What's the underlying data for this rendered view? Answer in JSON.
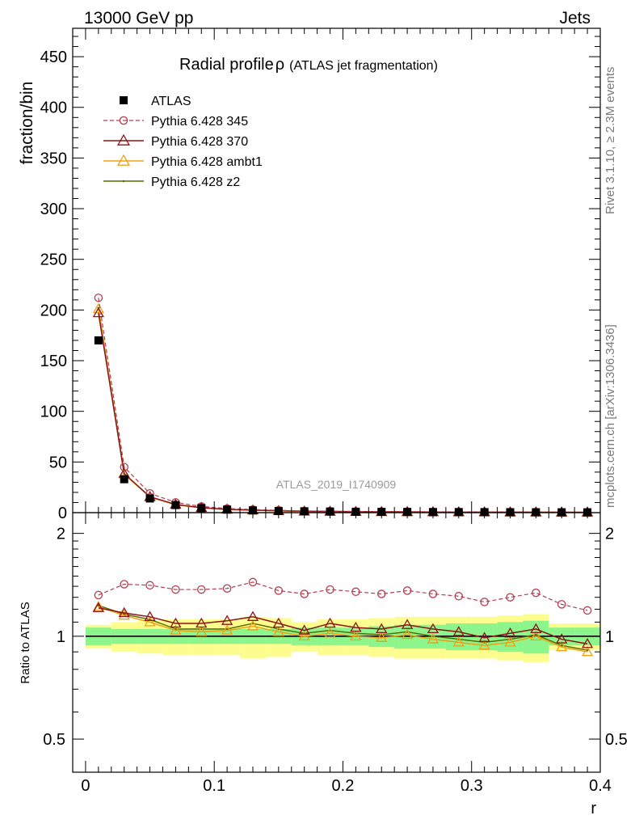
{
  "header": {
    "left_label": "13000 GeV pp",
    "right_label": "Jets"
  },
  "side_labels": {
    "rivet": "Rivet 3.1.10, ≥ 2.3M events",
    "mcplots": "mcplots.cern.ch [arXiv:1306.3436]"
  },
  "watermark": "ATLAS_2019_I1740909",
  "chart_data": {
    "type": "line",
    "title": "Radial profile",
    "title_symbol": "ρ",
    "subtitle": "(ATLAS jet fragmentation)",
    "xlabel": "r",
    "ylabel": "fraction/bin",
    "ratio_ylabel": "Ratio to ATLAS",
    "xlim": [
      -0.01,
      0.4
    ],
    "ylim": [
      0,
      478
    ],
    "ratio_ylim": [
      0.4,
      2.3
    ],
    "ratio_log": true,
    "x_ticks": [
      0,
      0.1,
      0.2,
      0.3,
      0.4
    ],
    "x_tick_labels": [
      "0",
      "0.1",
      "0.2",
      "0.3",
      "0.4"
    ],
    "y_ticks": [
      0,
      50,
      100,
      150,
      200,
      250,
      300,
      350,
      400,
      450
    ],
    "y_tick_labels": [
      "0",
      "50",
      "100",
      "150",
      "200",
      "250",
      "300",
      "350",
      "400",
      "450"
    ],
    "ratio_ticks": [
      0.5,
      1,
      2
    ],
    "ratio_tick_labels": [
      "0.5",
      "1",
      "2"
    ],
    "legend_position": "top-left",
    "x": [
      0.01,
      0.03,
      0.05,
      0.07,
      0.09,
      0.11,
      0.13,
      0.15,
      0.17,
      0.19,
      0.21,
      0.23,
      0.25,
      0.27,
      0.29,
      0.31,
      0.33,
      0.35,
      0.37,
      0.39
    ],
    "data": {
      "name": "ATLAS",
      "values": [
        170,
        33,
        14,
        7.5,
        4.5,
        3.0,
        2.2,
        1.7,
        1.3,
        1.1,
        0.9,
        0.8,
        0.7,
        0.6,
        0.55,
        0.5,
        0.45,
        0.4,
        0.37,
        0.34
      ],
      "band_stat": [
        0.06,
        0.05,
        0.05,
        0.05,
        0.05,
        0.05,
        0.05,
        0.05,
        0.06,
        0.06,
        0.06,
        0.07,
        0.08,
        0.08,
        0.09,
        0.09,
        0.1,
        0.11,
        0.06,
        0.06
      ],
      "band_total": [
        0.08,
        0.1,
        0.11,
        0.12,
        0.12,
        0.12,
        0.14,
        0.13,
        0.1,
        0.12,
        0.12,
        0.13,
        0.14,
        0.14,
        0.14,
        0.14,
        0.15,
        0.16,
        0.09,
        0.09
      ]
    },
    "series": [
      {
        "name": "Pythia 6.428 345",
        "color": "#b43c50",
        "marker": "circle",
        "dashed": true,
        "values": [
          212,
          45,
          19,
          10.1,
          6.1,
          4.1,
          3.1,
          2.3,
          1.7,
          1.5,
          1.2,
          1.05,
          0.95,
          0.78,
          0.72,
          0.63,
          0.6,
          0.55,
          0.46,
          0.4
        ],
        "ratio": [
          1.32,
          1.42,
          1.41,
          1.37,
          1.37,
          1.38,
          1.44,
          1.36,
          1.33,
          1.37,
          1.35,
          1.33,
          1.36,
          1.33,
          1.31,
          1.26,
          1.3,
          1.34,
          1.24,
          1.19
        ]
      },
      {
        "name": "Pythia 6.428 370",
        "color": "#8c1414",
        "marker": "triangle",
        "dashed": false,
        "values": [
          197,
          38.6,
          15.7,
          8.1,
          4.9,
          3.3,
          2.5,
          1.85,
          1.35,
          1.2,
          0.95,
          0.84,
          0.76,
          0.63,
          0.57,
          0.5,
          0.46,
          0.43,
          0.36,
          0.32
        ],
        "ratio": [
          1.21,
          1.17,
          1.14,
          1.09,
          1.09,
          1.11,
          1.14,
          1.09,
          1.04,
          1.09,
          1.06,
          1.05,
          1.08,
          1.05,
          1.03,
          0.99,
          1.02,
          1.05,
          0.98,
          0.95
        ]
      },
      {
        "name": "Pythia 6.428 ambt1",
        "color": "#f0a014",
        "marker": "triangle",
        "dashed": false,
        "values": [
          201,
          38,
          15.4,
          7.8,
          4.7,
          3.15,
          2.35,
          1.75,
          1.3,
          1.12,
          0.9,
          0.79,
          0.71,
          0.59,
          0.53,
          0.47,
          0.43,
          0.4,
          0.34,
          0.31
        ],
        "ratio": [
          1.22,
          1.15,
          1.1,
          1.04,
          1.03,
          1.04,
          1.07,
          1.03,
          1.0,
          1.02,
          1.0,
          0.99,
          1.01,
          0.98,
          0.96,
          0.94,
          0.96,
          1.0,
          0.93,
          0.9
        ]
      },
      {
        "name": "Pythia 6.428 z2",
        "color": "#5a6e00",
        "marker": "dot",
        "dashed": false,
        "values": [
          202,
          38.2,
          15.5,
          7.9,
          4.75,
          3.2,
          2.4,
          1.77,
          1.32,
          1.14,
          0.92,
          0.8,
          0.72,
          0.6,
          0.54,
          0.48,
          0.44,
          0.41,
          0.345,
          0.315
        ],
        "ratio": [
          1.23,
          1.16,
          1.12,
          1.05,
          1.05,
          1.05,
          1.09,
          1.05,
          1.02,
          1.04,
          1.02,
          1.01,
          1.03,
          1.0,
          0.98,
          0.96,
          0.98,
          1.01,
          0.94,
          0.91
        ]
      }
    ]
  }
}
